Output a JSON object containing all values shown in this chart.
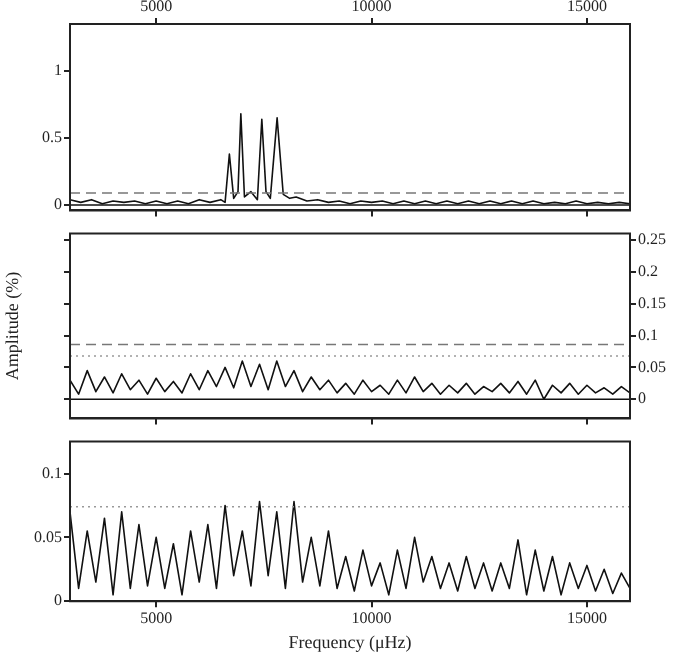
{
  "chart_data": [
    {
      "type": "line",
      "xlim": [
        3000,
        16000
      ],
      "xticks": [
        5000,
        10000,
        15000
      ],
      "x2lim": [
        3000,
        16000
      ],
      "x2ticks": [
        5000,
        10000,
        15000
      ],
      "ylim": [
        -0.04,
        1.35
      ],
      "yticks": [
        0,
        0.5,
        1
      ],
      "tick_labels": "y",
      "grid": false,
      "legend": false,
      "marker": "none",
      "line_style": "solid",
      "x": [
        3000,
        3250,
        3500,
        3750,
        4000,
        4250,
        4500,
        4750,
        5000,
        5250,
        5500,
        5750,
        6000,
        6250,
        6500,
        6600,
        6700,
        6800,
        6900,
        6966,
        7050,
        7200,
        7350,
        7453,
        7550,
        7650,
        7808,
        7950,
        8100,
        8250,
        8500,
        8750,
        9000,
        9250,
        9500,
        9750,
        10000,
        10250,
        10500,
        10750,
        11000,
        11250,
        11500,
        11750,
        12000,
        12250,
        12500,
        12750,
        13000,
        13250,
        13500,
        13750,
        14000,
        14250,
        14500,
        14750,
        15000,
        15250,
        15500,
        15750,
        16000
      ],
      "series": [
        {
          "color": "#111111",
          "values": [
            0.04,
            0.02,
            0.04,
            0.01,
            0.03,
            0.02,
            0.03,
            0.01,
            0.03,
            0.01,
            0.03,
            0.01,
            0.04,
            0.02,
            0.04,
            0.02,
            0.38,
            0.05,
            0.1,
            0.68,
            0.06,
            0.1,
            0.04,
            0.64,
            0.1,
            0.05,
            0.65,
            0.08,
            0.05,
            0.06,
            0.03,
            0.04,
            0.02,
            0.03,
            0.01,
            0.03,
            0.02,
            0.03,
            0.01,
            0.03,
            0.01,
            0.03,
            0.01,
            0.03,
            0.01,
            0.03,
            0.01,
            0.03,
            0.01,
            0.03,
            0.01,
            0.03,
            0.01,
            0.02,
            0.01,
            0.03,
            0.01,
            0.02,
            0.01,
            0.02,
            0.01
          ]
        }
      ],
      "ref_lines": [
        {
          "axis": "y",
          "value": 0,
          "line_style": "solid",
          "color": "#111111"
        },
        {
          "axis": "y",
          "value": 0.09,
          "line_style": "dashed",
          "color": "#777777"
        }
      ]
    },
    {
      "type": "line",
      "ylabel": "Amplitude (%)",
      "xlim": [
        3000,
        16000
      ],
      "xticks": [
        5000,
        10000,
        15000
      ],
      "y2lim": [
        -0.03,
        0.26
      ],
      "y2ticks": [
        0,
        0.05,
        0.1,
        0.15,
        0.2,
        0.25
      ],
      "tick_labels": "y",
      "grid": false,
      "legend": false,
      "marker": "none",
      "line_style": "solid",
      "x": [
        3000,
        3200,
        3400,
        3600,
        3800,
        4000,
        4200,
        4400,
        4600,
        4800,
        5000,
        5200,
        5400,
        5600,
        5800,
        6000,
        6200,
        6400,
        6600,
        6800,
        7000,
        7200,
        7400,
        7600,
        7800,
        8000,
        8200,
        8400,
        8600,
        8800,
        9000,
        9200,
        9400,
        9600,
        9800,
        10000,
        10200,
        10400,
        10600,
        10800,
        11000,
        11200,
        11400,
        11600,
        11800,
        12000,
        12200,
        12400,
        12600,
        12800,
        13000,
        13200,
        13400,
        13600,
        13800,
        14000,
        14200,
        14400,
        14600,
        14800,
        15000,
        15200,
        15400,
        15600,
        15800,
        16000
      ],
      "series": [
        {
          "axis": "y2",
          "color": "#111111",
          "values": [
            0.03,
            0.008,
            0.045,
            0.012,
            0.035,
            0.01,
            0.04,
            0.015,
            0.03,
            0.008,
            0.033,
            0.012,
            0.028,
            0.01,
            0.04,
            0.015,
            0.045,
            0.02,
            0.05,
            0.018,
            0.06,
            0.02,
            0.055,
            0.015,
            0.06,
            0.02,
            0.045,
            0.012,
            0.035,
            0.015,
            0.03,
            0.01,
            0.025,
            0.008,
            0.03,
            0.012,
            0.022,
            0.008,
            0.03,
            0.01,
            0.035,
            0.012,
            0.025,
            0.008,
            0.022,
            0.01,
            0.025,
            0.008,
            0.02,
            0.012,
            0.025,
            0.01,
            0.028,
            0.008,
            0.03,
            0.0,
            0.022,
            0.01,
            0.025,
            0.008,
            0.022,
            0.01,
            0.018,
            0.008,
            0.02,
            0.01
          ]
        }
      ],
      "ref_lines": [
        {
          "axis": "y2",
          "value": 0,
          "line_style": "solid",
          "color": "#111111"
        },
        {
          "axis": "y2",
          "value": 0.086,
          "line_style": "dashed",
          "color": "#777777"
        },
        {
          "axis": "y2",
          "value": 0.068,
          "line_style": "dotted",
          "color": "#999999"
        }
      ]
    },
    {
      "type": "line",
      "xlabel": "Frequency (μHz)",
      "xlim": [
        3000,
        16000
      ],
      "xticks": [
        5000,
        10000,
        15000
      ],
      "ylim": [
        0,
        0.125
      ],
      "yticks": [
        0,
        0.05,
        0.1
      ],
      "grid": false,
      "legend": false,
      "marker": "none",
      "line_style": "solid",
      "x": [
        3000,
        3200,
        3400,
        3600,
        3800,
        4000,
        4200,
        4400,
        4600,
        4800,
        5000,
        5200,
        5400,
        5600,
        5800,
        6000,
        6200,
        6400,
        6600,
        6800,
        7000,
        7200,
        7400,
        7600,
        7800,
        8000,
        8200,
        8400,
        8600,
        8800,
        9000,
        9200,
        9400,
        9600,
        9800,
        10000,
        10200,
        10400,
        10600,
        10800,
        11000,
        11200,
        11400,
        11600,
        11800,
        12000,
        12200,
        12400,
        12600,
        12800,
        13000,
        13200,
        13400,
        13600,
        13800,
        14000,
        14200,
        14400,
        14600,
        14800,
        15000,
        15200,
        15400,
        15600,
        15800,
        16000
      ],
      "series": [
        {
          "color": "#111111",
          "values": [
            0.07,
            0.01,
            0.055,
            0.015,
            0.065,
            0.005,
            0.07,
            0.01,
            0.06,
            0.012,
            0.05,
            0.01,
            0.045,
            0.005,
            0.055,
            0.015,
            0.06,
            0.01,
            0.075,
            0.02,
            0.055,
            0.012,
            0.078,
            0.02,
            0.07,
            0.01,
            0.078,
            0.015,
            0.05,
            0.012,
            0.055,
            0.01,
            0.035,
            0.008,
            0.04,
            0.012,
            0.03,
            0.005,
            0.04,
            0.01,
            0.05,
            0.015,
            0.035,
            0.01,
            0.03,
            0.008,
            0.035,
            0.01,
            0.03,
            0.008,
            0.03,
            0.01,
            0.048,
            0.005,
            0.04,
            0.008,
            0.035,
            0.005,
            0.03,
            0.01,
            0.028,
            0.008,
            0.025,
            0.006,
            0.022,
            0.01
          ]
        }
      ],
      "ref_lines": [
        {
          "axis": "y",
          "value": 0.074,
          "line_style": "dotted",
          "color": "#999999"
        }
      ]
    }
  ]
}
